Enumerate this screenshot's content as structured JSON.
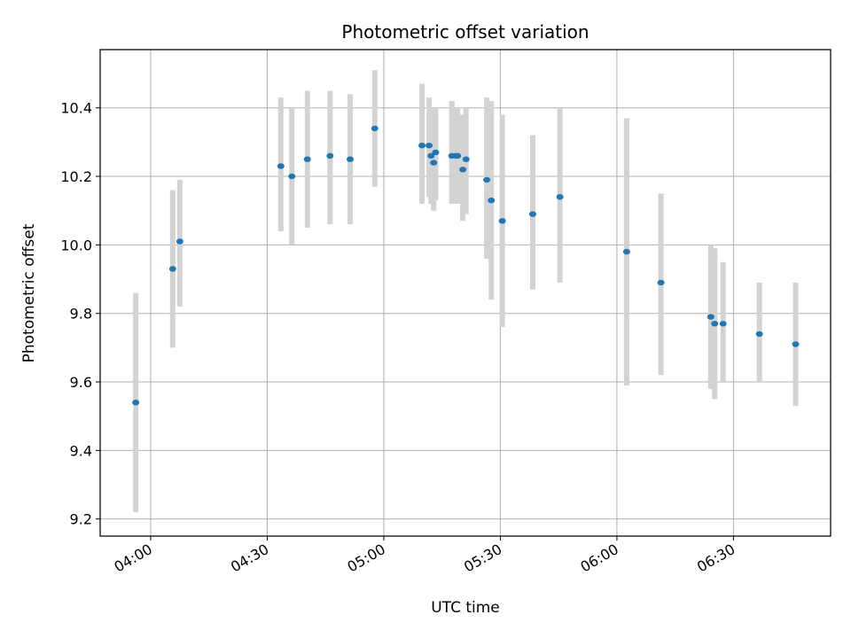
{
  "chart_data": {
    "type": "scatter",
    "title": "Photometric offset variation",
    "xlabel": "UTC time",
    "ylabel": "Photometric offset",
    "x_unit": "UTC time (HH:MM)",
    "xlim": [
      "03:47",
      "06:55"
    ],
    "ylim": [
      9.15,
      10.57
    ],
    "x_ticks": [
      "04:00",
      "04:30",
      "05:00",
      "05:30",
      "06:00",
      "06:30"
    ],
    "y_ticks": [
      "9.2",
      "9.4",
      "9.6",
      "9.8",
      "10.0",
      "10.2",
      "10.4"
    ],
    "grid": true,
    "legend": "none",
    "marker_color": "#1f77b4",
    "errorbar_color": "#d3d3d3",
    "series": [
      {
        "points": [
          {
            "x": "03:56:10",
            "y": 9.54,
            "ylow": 9.22,
            "yhigh": 9.86
          },
          {
            "x": "04:05:40",
            "y": 9.93,
            "ylow": 9.7,
            "yhigh": 10.16
          },
          {
            "x": "04:07:30",
            "y": 10.01,
            "ylow": 9.82,
            "yhigh": 10.19
          },
          {
            "x": "04:33:30",
            "y": 10.23,
            "ylow": 10.04,
            "yhigh": 10.43
          },
          {
            "x": "04:36:20",
            "y": 10.2,
            "ylow": 10.0,
            "yhigh": 10.4
          },
          {
            "x": "04:40:20",
            "y": 10.25,
            "ylow": 10.05,
            "yhigh": 10.45
          },
          {
            "x": "04:46:10",
            "y": 10.26,
            "ylow": 10.06,
            "yhigh": 10.45
          },
          {
            "x": "04:51:20",
            "y": 10.25,
            "ylow": 10.06,
            "yhigh": 10.44
          },
          {
            "x": "04:57:40",
            "y": 10.34,
            "ylow": 10.17,
            "yhigh": 10.51
          },
          {
            "x": "05:09:50",
            "y": 10.29,
            "ylow": 10.12,
            "yhigh": 10.47
          },
          {
            "x": "05:11:40",
            "y": 10.29,
            "ylow": 10.14,
            "yhigh": 10.43
          },
          {
            "x": "05:12:10",
            "y": 10.26,
            "ylow": 10.12,
            "yhigh": 10.4
          },
          {
            "x": "05:12:50",
            "y": 10.24,
            "ylow": 10.1,
            "yhigh": 10.38
          },
          {
            "x": "05:13:20",
            "y": 10.27,
            "ylow": 10.13,
            "yhigh": 10.4
          },
          {
            "x": "05:17:30",
            "y": 10.26,
            "ylow": 10.12,
            "yhigh": 10.42
          },
          {
            "x": "05:18:30",
            "y": 10.26,
            "ylow": 10.12,
            "yhigh": 10.4
          },
          {
            "x": "05:19:00",
            "y": 10.26,
            "ylow": 10.12,
            "yhigh": 10.4
          },
          {
            "x": "05:20:20",
            "y": 10.22,
            "ylow": 10.07,
            "yhigh": 10.38
          },
          {
            "x": "05:21:10",
            "y": 10.25,
            "ylow": 10.09,
            "yhigh": 10.4
          },
          {
            "x": "05:26:30",
            "y": 10.19,
            "ylow": 9.96,
            "yhigh": 10.43
          },
          {
            "x": "05:27:40",
            "y": 10.13,
            "ylow": 9.84,
            "yhigh": 10.42
          },
          {
            "x": "05:30:30",
            "y": 10.07,
            "ylow": 9.76,
            "yhigh": 10.38
          },
          {
            "x": "05:38:20",
            "y": 10.09,
            "ylow": 9.87,
            "yhigh": 10.32
          },
          {
            "x": "05:45:20",
            "y": 10.14,
            "ylow": 9.89,
            "yhigh": 10.4
          },
          {
            "x": "06:02:30",
            "y": 9.98,
            "ylow": 9.59,
            "yhigh": 10.37
          },
          {
            "x": "06:11:20",
            "y": 9.89,
            "ylow": 9.62,
            "yhigh": 10.15
          },
          {
            "x": "06:24:10",
            "y": 9.79,
            "ylow": 9.58,
            "yhigh": 10.0
          },
          {
            "x": "06:25:10",
            "y": 9.77,
            "ylow": 9.55,
            "yhigh": 9.99
          },
          {
            "x": "06:27:20",
            "y": 9.77,
            "ylow": 9.6,
            "yhigh": 9.95
          },
          {
            "x": "06:36:40",
            "y": 9.74,
            "ylow": 9.6,
            "yhigh": 9.89
          },
          {
            "x": "06:46:00",
            "y": 9.71,
            "ylow": 9.53,
            "yhigh": 9.89
          }
        ]
      }
    ]
  }
}
